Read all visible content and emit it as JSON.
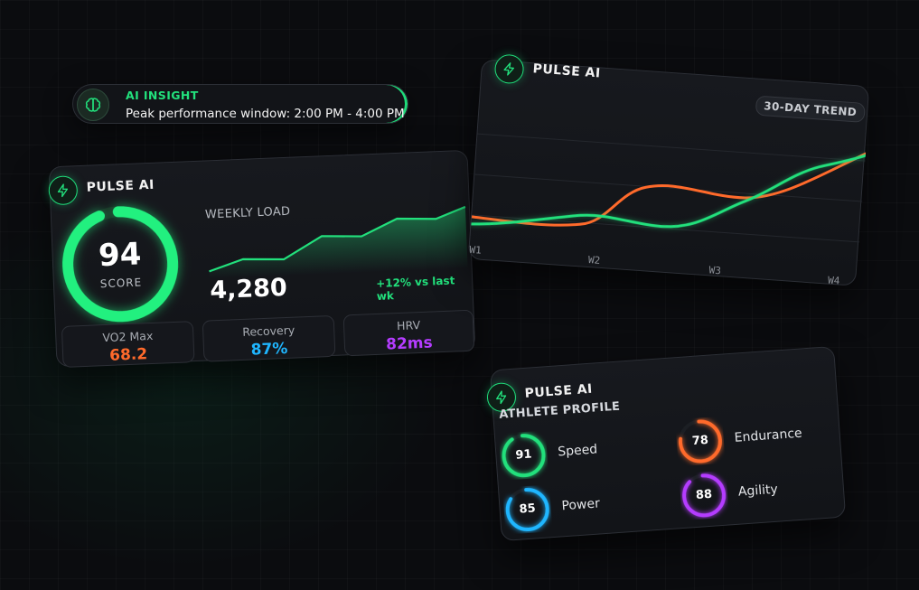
{
  "insight": {
    "title": "AI INSIGHT",
    "message": "Peak performance window: 2:00 PM - 4:00 PM",
    "icon": "brain-icon"
  },
  "brand": "PULSE AI",
  "score_card": {
    "score": "94",
    "score_label": "SCORE",
    "score_progress": 0.94,
    "weekly_label": "WEEKLY LOAD",
    "weekly_value": "4,280",
    "weekly_delta": "+12% vs last wk",
    "stats": [
      {
        "label": "VO2 Max",
        "value": "68.2",
        "color": "#ff6a2b"
      },
      {
        "label": "Recovery",
        "value": "87%",
        "color": "#1fb6ff"
      },
      {
        "label": "HRV",
        "value": "82ms",
        "color": "#b43cff"
      }
    ]
  },
  "trend_card": {
    "badge": "30-DAY TREND",
    "x_ticks": [
      "W1",
      "W2",
      "W3",
      "W4"
    ]
  },
  "profile_card": {
    "title": "ATHLETE PROFILE",
    "attributes": [
      {
        "name": "Speed",
        "value": "91",
        "color": "#22e07c"
      },
      {
        "name": "Endurance",
        "value": "78",
        "color": "#ff6a2b"
      },
      {
        "name": "Power",
        "value": "85",
        "color": "#1fb6ff"
      },
      {
        "name": "Agility",
        "value": "88",
        "color": "#b43cff"
      }
    ]
  },
  "colors": {
    "accent": "#22e07c",
    "orange": "#ff6a2b",
    "blue": "#1fb6ff",
    "purple": "#b43cff"
  }
}
